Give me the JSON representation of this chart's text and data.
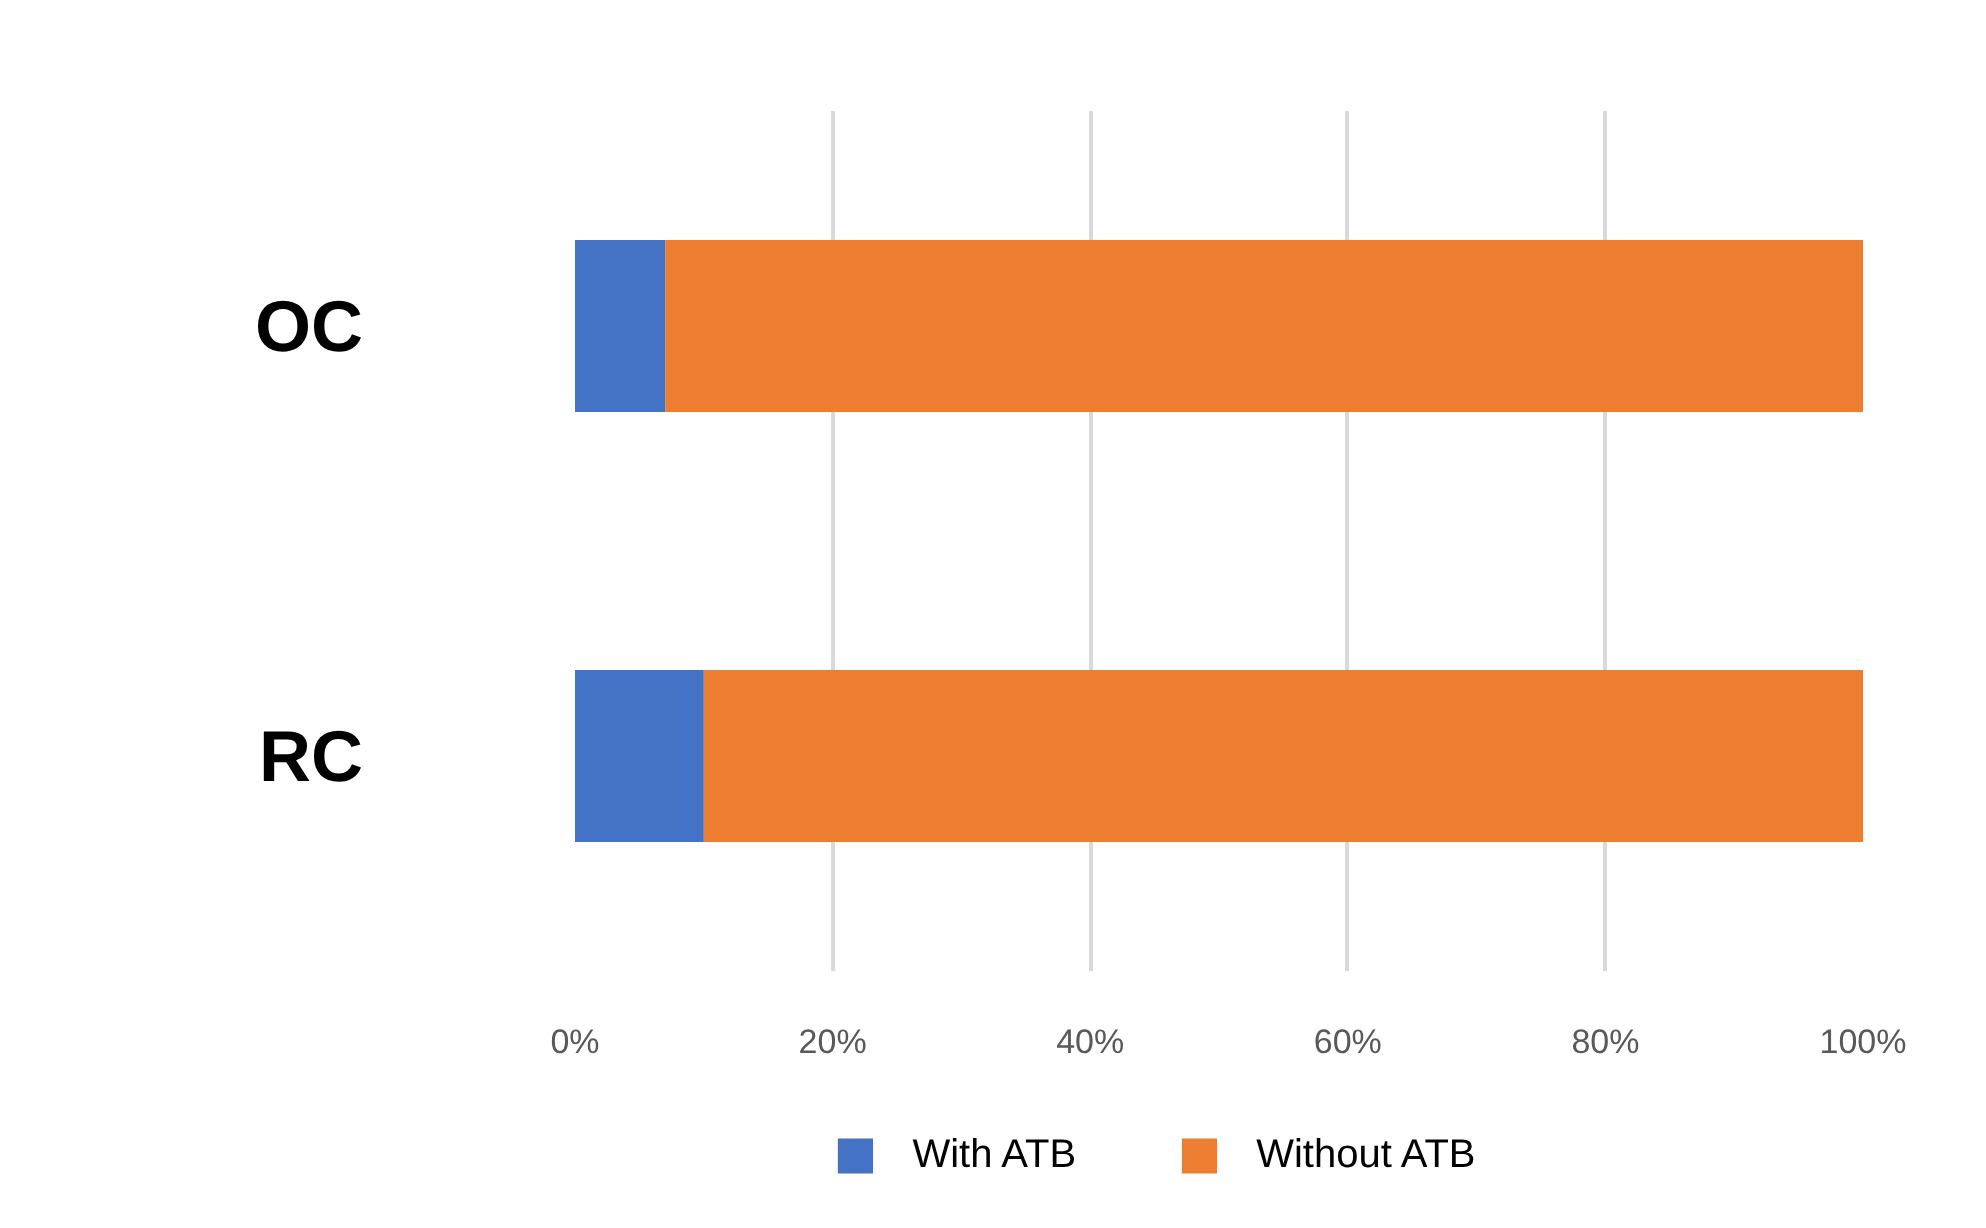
{
  "chart_data": {
    "type": "bar",
    "orientation": "horizontal",
    "stacked": true,
    "categories": [
      "OC",
      "RC"
    ],
    "series": [
      {
        "name": "With ATB",
        "color": "#4472c4",
        "values": [
          7,
          10
        ]
      },
      {
        "name": "Without ATB",
        "color": "#ed7d31",
        "values": [
          93,
          90
        ]
      }
    ],
    "xlim": [
      0,
      100
    ],
    "xticks": [
      {
        "value": 0,
        "label": "0%"
      },
      {
        "value": 20,
        "label": "20%"
      },
      {
        "value": 40,
        "label": "40%"
      },
      {
        "value": 60,
        "label": "60%"
      },
      {
        "value": 80,
        "label": "80%"
      },
      {
        "value": 100,
        "label": "100%"
      }
    ],
    "grid": "x",
    "legend": "bottom"
  }
}
